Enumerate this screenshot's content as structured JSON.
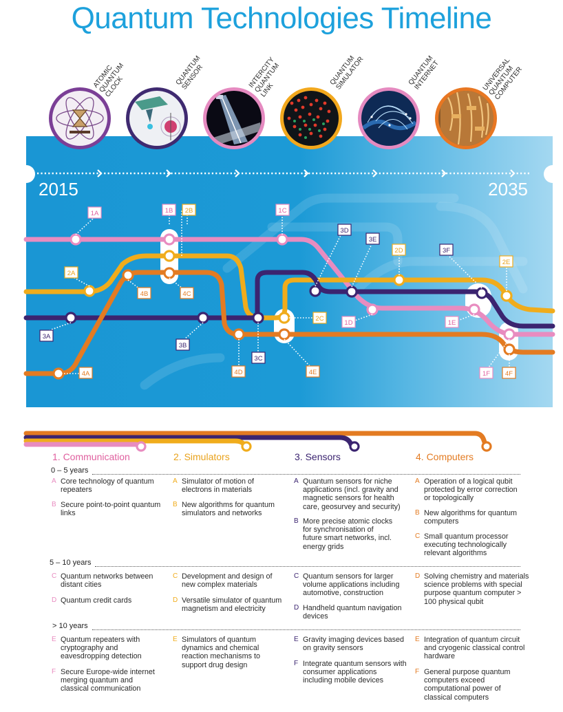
{
  "title": "Quantum Technologies Timeline",
  "technologies": [
    {
      "label": [
        "ATOMIC",
        "QUANTUM",
        "CLOCK"
      ],
      "ring": "#7b3f96",
      "icon": "atomic-clock-icon"
    },
    {
      "label": [
        "QUANTUM",
        "SENSOR"
      ],
      "ring": "#3f2a70",
      "icon": "quantum-sensor-icon"
    },
    {
      "label": [
        "INTERCITY",
        "QUANTUM",
        "LINK"
      ],
      "ring": "#e58ac0",
      "icon": "quantum-link-icon"
    },
    {
      "label": [
        "QUANTUM",
        "SIMULATOR"
      ],
      "ring": "#f2a81d",
      "icon": "quantum-simulator-icon"
    },
    {
      "label": [
        "QUANTUM",
        "INTERNET"
      ],
      "ring": "#e58ac0",
      "icon": "quantum-internet-icon"
    },
    {
      "label": [
        "UNIVERSAL",
        "QUANTUM",
        "COMPUTER"
      ],
      "ring": "#e87722",
      "icon": "quantum-computer-icon"
    }
  ],
  "timeline": {
    "start": "2015",
    "end": "2035"
  },
  "colors": {
    "communication": "#e88cc0",
    "simulators": "#f0ac1c",
    "sensors": "#3b2470",
    "computers": "#e37b22",
    "sky": "#1c9ad6"
  },
  "milestones": [
    "1A",
    "1B",
    "1C",
    "1D",
    "1E",
    "1F",
    "2A",
    "2B",
    "2C",
    "2D",
    "2E",
    "3A",
    "3B",
    "3C",
    "3D",
    "3E",
    "3F",
    "4A",
    "4B",
    "4C",
    "4D",
    "4E",
    "4F"
  ],
  "categories": [
    {
      "heading": "1. Communication",
      "color": "#e0609f"
    },
    {
      "heading": "2. Simulators",
      "color": "#e9a21b"
    },
    {
      "heading": "3. Sensors",
      "color": "#3b2470"
    },
    {
      "heading": "4. Computers",
      "color": "#e37b22"
    }
  ],
  "periods": [
    "0 – 5 years",
    "5 – 10 years",
    "> 10 years"
  ],
  "entries": {
    "communication": [
      {
        "letter": "A",
        "text": "Core technology of quantum repeaters"
      },
      {
        "letter": "B",
        "text": "Secure point-to-point quantum links"
      },
      {
        "letter": "C",
        "text": "Quantum networks between distant cities"
      },
      {
        "letter": "D",
        "text": "Quantum credit cards"
      },
      {
        "letter": "E",
        "text": "Quantum repeaters with cryptography and eavesdropping detection"
      },
      {
        "letter": "F",
        "text": "Secure Europe-wide internet merging quantum and classical communication"
      }
    ],
    "simulators": [
      {
        "letter": "A",
        "text": "Simulator of motion of electrons in materials"
      },
      {
        "letter": "B",
        "text": "New algorithms for quantum simulators and networks"
      },
      {
        "letter": "C",
        "text": "Development and design of new complex materials"
      },
      {
        "letter": "D",
        "text": "Versatile simulator of quantum magnetism and electricity"
      },
      {
        "letter": "E",
        "text": "Simulators of quantum dynamics and chemical reaction mechanisms to support drug design"
      }
    ],
    "sensors": [
      {
        "letter": "A",
        "text": "Quantum sensors for niche applications (incl. gravity and magnetic sensors for health care, geosurvey and security)"
      },
      {
        "letter": "B",
        "text": "More precise atomic clocks for synchronisation of future smart networks, incl. energy grids"
      },
      {
        "letter": "C",
        "text": "Quantum sensors for larger volume applications including automotive, construction"
      },
      {
        "letter": "D",
        "text": "Handheld quantum navigation devices"
      },
      {
        "letter": "E",
        "text": "Gravity imaging devices based on gravity sensors"
      },
      {
        "letter": "F",
        "text": "Integrate quantum sensors with consumer applications including mobile devices"
      }
    ],
    "computers": [
      {
        "letter": "A",
        "text": "Operation of a logical qubit protected by error correction or topologically"
      },
      {
        "letter": "B",
        "text": "New algorithms for quantum computers"
      },
      {
        "letter": "C",
        "text": "Small quantum processor executing technologically relevant algorithms"
      },
      {
        "letter": "D",
        "text": "Solving chemistry and materials science problems with special purpose quantum computer > 100 physical qubit"
      },
      {
        "letter": "E",
        "text": "Integration of quantum circuit and cryogenic classical control hardware"
      },
      {
        "letter": "F",
        "text": "General purpose quantum computers exceed computational power of classical computers"
      }
    ]
  }
}
